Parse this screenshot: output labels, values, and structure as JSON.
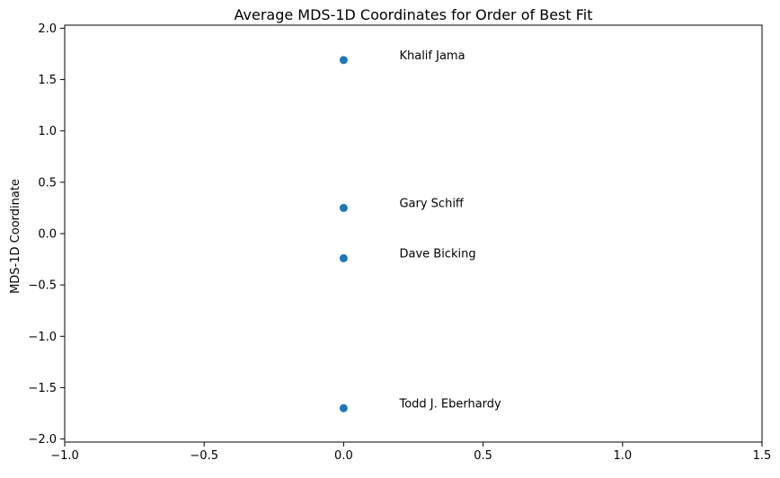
{
  "chart_data": {
    "type": "scatter",
    "title": "Average MDS-1D Coordinates for Order of Best Fit",
    "xlabel": "",
    "ylabel": "MDS-1D Coordinate",
    "xlim": [
      -1.0,
      1.5
    ],
    "ylim": [
      -2.03,
      2.03
    ],
    "xticks": [
      "−1.0",
      "−0.5",
      "0.0",
      "0.5",
      "1.0",
      "1.5"
    ],
    "xtick_values": [
      -1.0,
      -0.5,
      0.0,
      0.5,
      1.0,
      1.5
    ],
    "yticks": [
      "−2.0",
      "−1.5",
      "−1.0",
      "−0.5",
      "0.0",
      "0.5",
      "1.0",
      "1.5",
      "2.0"
    ],
    "ytick_values": [
      -2.0,
      -1.5,
      -1.0,
      -0.5,
      0.0,
      0.5,
      1.0,
      1.5,
      2.0
    ],
    "grid": false,
    "point_color": "#1f77b4",
    "points": [
      {
        "x": 0.0,
        "y": 1.69,
        "label": "Khalif Jama"
      },
      {
        "x": 0.0,
        "y": 0.25,
        "label": "Gary Schiff"
      },
      {
        "x": 0.0,
        "y": -0.24,
        "label": "Dave Bicking"
      },
      {
        "x": 0.0,
        "y": -1.7,
        "label": "Todd J. Eberhardy"
      }
    ]
  }
}
